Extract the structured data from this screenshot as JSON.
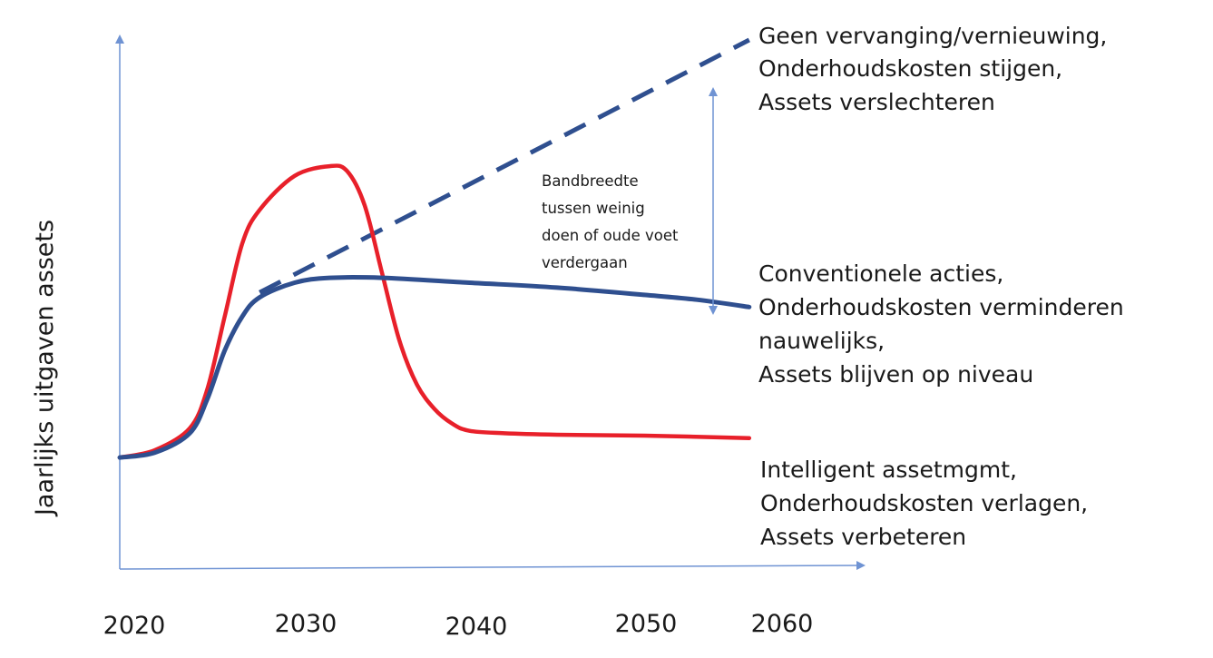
{
  "chart_data": {
    "type": "line",
    "title": "",
    "xlabel": "",
    "ylabel": "Jaarlijks uitgaven assets",
    "x_tick_labels": [
      "2020",
      "2030",
      "2040",
      "2050",
      "2060"
    ],
    "xlim": [
      2020,
      2064
    ],
    "ylim": [
      0,
      100
    ],
    "grid": false,
    "series": [
      {
        "name": "Geen vervanging/vernieuwing, Onderhoudskosten stijgen, Assets verslechteren",
        "style": "dashed",
        "color": "#2f4f8f",
        "x": [
          2028,
          2056
        ],
        "y": [
          48,
          100
        ]
      },
      {
        "name": "Conventionele acties, Onderhoudskosten verminderen nauwelijks, Assets blijven op niveau",
        "style": "solid",
        "color": "#2f4f8f",
        "x": [
          2020,
          2022,
          2024,
          2025,
          2026,
          2027,
          2028,
          2030,
          2032,
          2035,
          2040,
          2045,
          2050,
          2053,
          2056
        ],
        "y": [
          14,
          15,
          19,
          26,
          36,
          43,
          47,
          50,
          51,
          51,
          50,
          49,
          47.5,
          46.5,
          45
        ]
      },
      {
        "name": "Intelligent assetmgmt, Onderhoudskosten verlagen, Assets verbeteren",
        "style": "solid",
        "color": "#e8202a",
        "x": [
          2020,
          2022,
          2024,
          2025,
          2026,
          2027,
          2028,
          2030,
          2032,
          2033,
          2034,
          2035,
          2036,
          2037,
          2038,
          2039,
          2040,
          2042,
          2045,
          2050,
          2056
        ],
        "y": [
          14,
          15.5,
          20,
          28,
          43,
          58,
          65,
          72,
          74,
          73,
          66,
          52,
          38,
          29,
          24,
          21,
          19.5,
          19,
          18.7,
          18.5,
          18
        ]
      }
    ],
    "annotations": {
      "band": {
        "text_lines": [
          "Bandbreedte",
          "tussen weinig",
          "doen of oude voet",
          "verdergaan"
        ]
      },
      "labels": [
        {
          "series": 0,
          "lines": [
            "Geen vervanging/vernieuwing,",
            "Onderhoudskosten stijgen,",
            "Assets verslechteren"
          ]
        },
        {
          "series": 1,
          "lines": [
            "Conventionele acties,",
            "Onderhoudskosten verminderen",
            "nauwelijks,",
            "Assets blijven op niveau"
          ]
        },
        {
          "series": 2,
          "lines": [
            "Intelligent assetmgmt,",
            "Onderhoudskosten verlagen,",
            "Assets verbeteren"
          ]
        }
      ]
    },
    "colors": {
      "axis": "#6f93d3",
      "band_arrow": "#6f93d3"
    }
  }
}
